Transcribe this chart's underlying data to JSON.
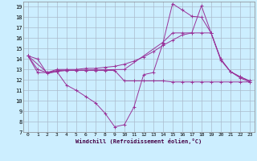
{
  "xlabel": "Windchill (Refroidissement éolien,°C)",
  "background_color": "#cceeff",
  "grid_color": "#aabbcc",
  "line_color": "#993399",
  "xlim": [
    -0.5,
    23.5
  ],
  "ylim": [
    7,
    19.5
  ],
  "xticks": [
    0,
    1,
    2,
    3,
    4,
    5,
    6,
    7,
    8,
    9,
    10,
    11,
    12,
    13,
    14,
    15,
    16,
    17,
    18,
    19,
    20,
    21,
    22,
    23
  ],
  "yticks": [
    7,
    8,
    9,
    10,
    11,
    12,
    13,
    14,
    15,
    16,
    17,
    18,
    19
  ],
  "series": [
    {
      "x": [
        0,
        1,
        2,
        3,
        4,
        5,
        6,
        7,
        8,
        9,
        10,
        11,
        12,
        13,
        14,
        15,
        16,
        17,
        18,
        19,
        20,
        21,
        22,
        23
      ],
      "y": [
        14.3,
        14.0,
        12.6,
        12.8,
        11.5,
        11.0,
        10.4,
        9.8,
        8.8,
        7.5,
        7.7,
        9.4,
        12.5,
        12.7,
        15.5,
        19.3,
        18.7,
        18.1,
        18.0,
        16.5,
        13.9,
        12.8,
        12.2,
        11.8
      ]
    },
    {
      "x": [
        0,
        1,
        2,
        3,
        4,
        5,
        6,
        7,
        8,
        9,
        10,
        11,
        12,
        13,
        14,
        15,
        16,
        17,
        18,
        19,
        20,
        21,
        22,
        23
      ],
      "y": [
        14.3,
        13.0,
        12.7,
        13.0,
        13.0,
        13.0,
        13.1,
        13.1,
        13.2,
        13.3,
        13.5,
        13.8,
        14.2,
        14.7,
        15.3,
        15.8,
        16.3,
        16.5,
        16.5,
        16.5,
        14.0,
        12.8,
        12.3,
        11.9
      ]
    },
    {
      "x": [
        0,
        2,
        3,
        10,
        14,
        15,
        16,
        17,
        18,
        19,
        20,
        21,
        22,
        23
      ],
      "y": [
        14.3,
        12.7,
        12.9,
        13.0,
        15.6,
        16.5,
        16.5,
        16.5,
        19.1,
        16.5,
        14.0,
        12.8,
        12.3,
        11.9
      ]
    },
    {
      "x": [
        0,
        1,
        2,
        3,
        4,
        5,
        6,
        7,
        8,
        9,
        10,
        11,
        12,
        13,
        14,
        15,
        16,
        17,
        18,
        19,
        20,
        21,
        22,
        23
      ],
      "y": [
        14.3,
        12.7,
        12.7,
        12.8,
        12.9,
        12.9,
        12.9,
        12.9,
        12.9,
        12.9,
        11.9,
        11.9,
        11.9,
        11.9,
        11.9,
        11.8,
        11.8,
        11.8,
        11.8,
        11.8,
        11.8,
        11.8,
        11.8,
        11.8
      ]
    }
  ]
}
